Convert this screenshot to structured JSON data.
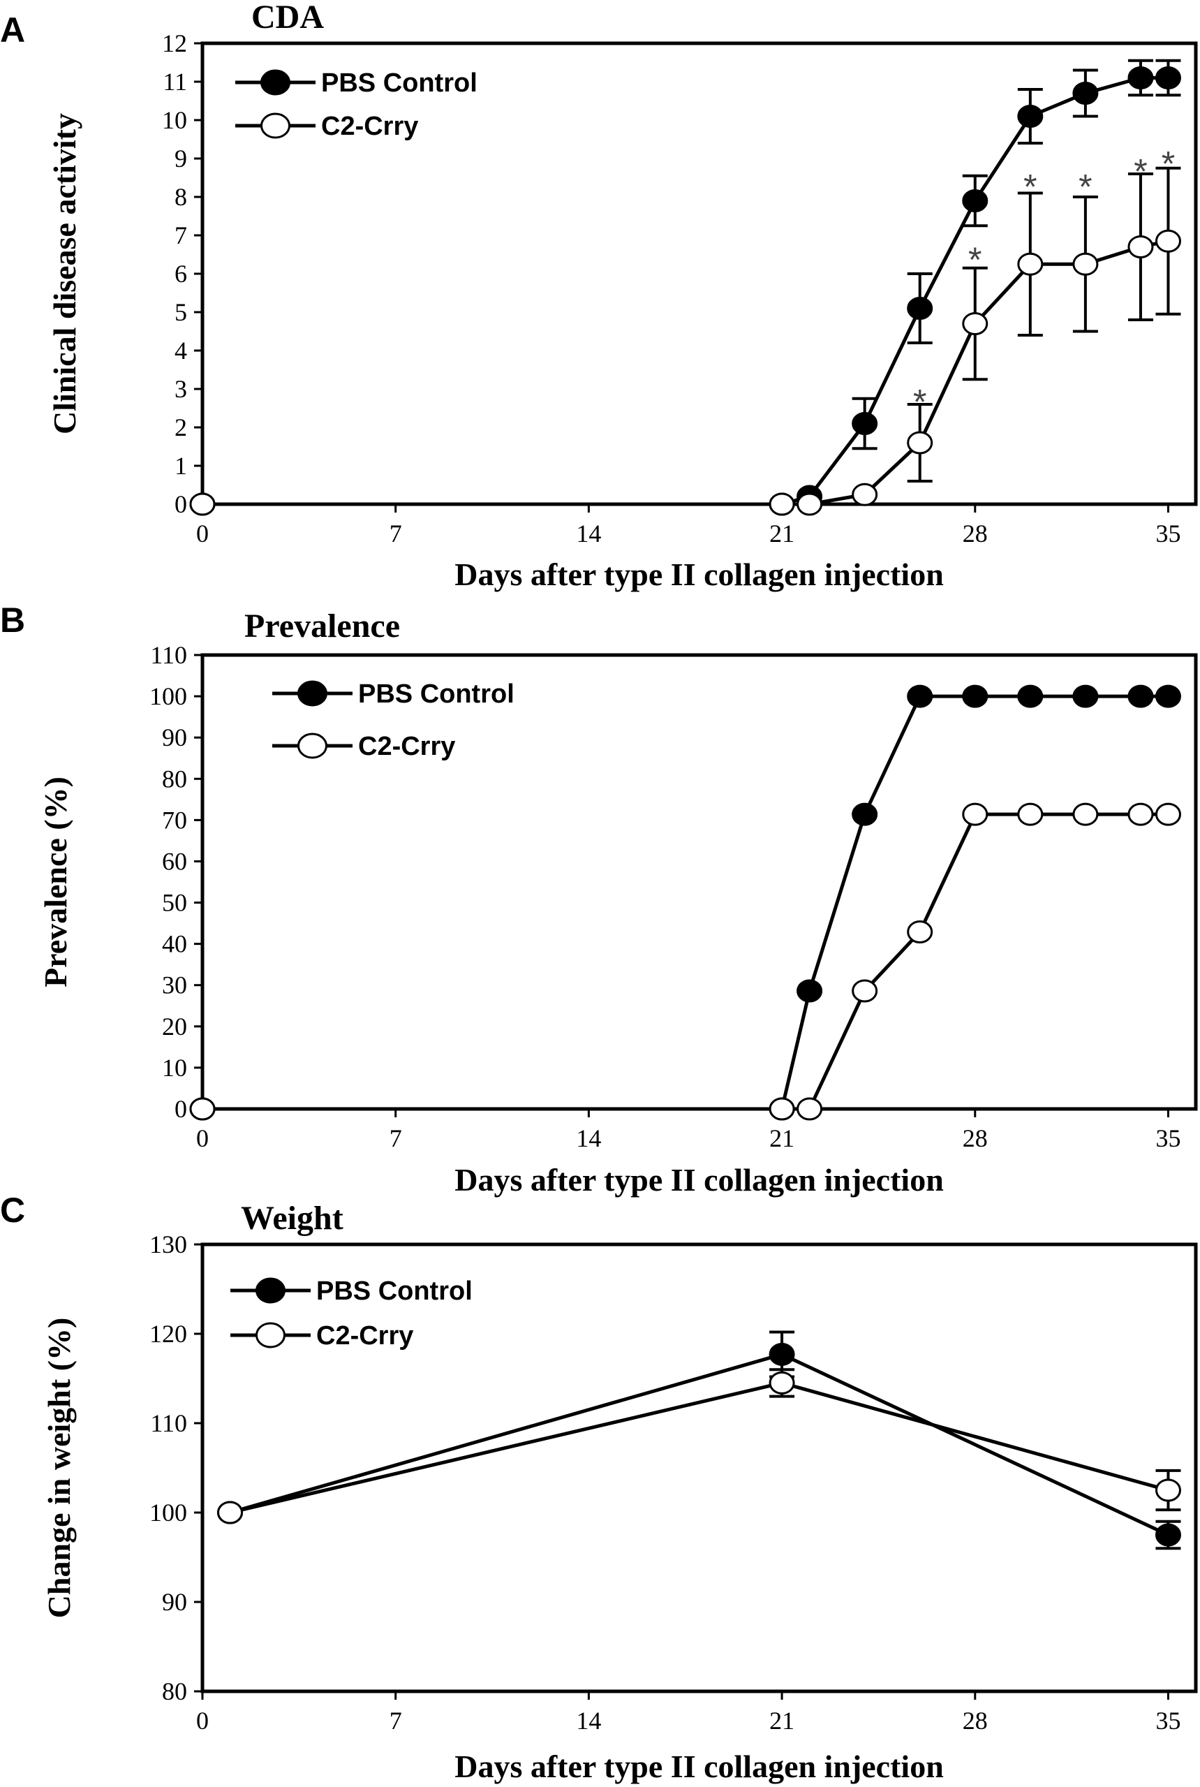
{
  "colors": {
    "pbs_fill": "#000000",
    "crry_fill": "#ffffff",
    "line": "#000000"
  },
  "chart_data": [
    {
      "panel": "A",
      "type": "line",
      "title": "CDA",
      "xlabel": "Days after type II collagen injection",
      "ylabel": "Clinical  disease activity",
      "xlim": [
        0,
        36
      ],
      "ylim": [
        0,
        12
      ],
      "xticks": [
        0,
        7,
        14,
        21,
        28,
        35
      ],
      "xtick_labels": [
        "0",
        "7",
        "14",
        "21",
        "28",
        "35"
      ],
      "yticks": [
        0,
        1,
        2,
        3,
        4,
        5,
        6,
        7,
        8,
        9,
        10,
        11,
        12
      ],
      "ytick_labels": [
        "0",
        "1",
        "2",
        "3",
        "4",
        "5",
        "6",
        "7",
        "8",
        "9",
        "10",
        "11",
        "12"
      ],
      "legend": [
        "PBS Control",
        "C2-Crry"
      ],
      "series": [
        {
          "name": "PBS Control",
          "marker": "filled",
          "x": [
            0,
            21,
            22,
            24,
            26,
            28,
            30,
            32,
            34,
            35
          ],
          "y": [
            0,
            0,
            0.2,
            2.1,
            5.1,
            7.9,
            10.1,
            10.7,
            11.1,
            11.1
          ],
          "err": [
            0,
            0,
            0,
            0.65,
            0.9,
            0.65,
            0.7,
            0.6,
            0.45,
            0.45
          ]
        },
        {
          "name": "C2-Crry",
          "marker": "open",
          "x": [
            0,
            21,
            22,
            24,
            26,
            28,
            30,
            32,
            34,
            35
          ],
          "y": [
            0,
            0,
            0,
            0.25,
            1.6,
            4.7,
            6.25,
            6.25,
            6.7,
            6.85
          ],
          "err": [
            0,
            0,
            0,
            0,
            1.0,
            1.45,
            1.85,
            1.75,
            1.9,
            1.9
          ]
        }
      ],
      "annotations": [
        {
          "text": "*",
          "x": 26,
          "y": 2.9
        },
        {
          "text": "*",
          "x": 28,
          "y": 6.6
        },
        {
          "text": "*",
          "x": 30,
          "y": 8.5
        },
        {
          "text": "*",
          "x": 32,
          "y": 8.5
        },
        {
          "text": "*",
          "x": 34,
          "y": 8.9
        },
        {
          "text": "*",
          "x": 35,
          "y": 9.1
        }
      ]
    },
    {
      "panel": "B",
      "type": "line",
      "title": "Prevalence",
      "xlabel": "Days after type II collagen injection",
      "ylabel": "Prevalence (%)",
      "xlim": [
        0,
        36
      ],
      "ylim": [
        0,
        110
      ],
      "xticks": [
        0,
        7,
        14,
        21,
        28,
        35
      ],
      "xtick_labels": [
        "0",
        "7",
        "14",
        "21",
        "28",
        "35"
      ],
      "yticks": [
        0,
        10,
        20,
        30,
        40,
        50,
        60,
        70,
        80,
        90,
        100,
        110
      ],
      "ytick_labels": [
        "0",
        "10",
        "20",
        "30",
        "40",
        "50",
        "60",
        "70",
        "80",
        "90",
        "100",
        "110"
      ],
      "legend": [
        "PBS Control",
        "C2-Crry"
      ],
      "series": [
        {
          "name": "PBS Control",
          "marker": "filled",
          "x": [
            0,
            21,
            22,
            24,
            26,
            28,
            30,
            32,
            34,
            35
          ],
          "y": [
            0,
            0,
            28.6,
            71.4,
            100,
            100,
            100,
            100,
            100,
            100
          ]
        },
        {
          "name": "C2-Crry",
          "marker": "open",
          "x": [
            0,
            21,
            22,
            24,
            26,
            28,
            30,
            32,
            34,
            35
          ],
          "y": [
            0,
            0,
            0,
            28.6,
            42.9,
            71.4,
            71.4,
            71.4,
            71.4,
            71.4
          ]
        }
      ],
      "annotations": []
    },
    {
      "panel": "C",
      "type": "line",
      "title": "Weight",
      "xlabel": "Days after type II collagen injection",
      "ylabel": "Change  in  weight  (%)",
      "xlim": [
        0,
        36
      ],
      "ylim": [
        80,
        130
      ],
      "xticks": [
        0,
        7,
        14,
        21,
        28,
        35
      ],
      "xtick_labels": [
        "0",
        "7",
        "14",
        "21",
        "28",
        "35"
      ],
      "yticks": [
        80,
        90,
        100,
        110,
        120,
        130
      ],
      "ytick_labels": [
        "80",
        "90",
        "100",
        "110",
        "120",
        "130"
      ],
      "legend": [
        "PBS Control",
        "C2-Crry"
      ],
      "series": [
        {
          "name": "PBS Control",
          "marker": "filled",
          "x": [
            1,
            21,
            35
          ],
          "y": [
            100,
            117.7,
            97.5
          ],
          "err": [
            0,
            2.5,
            1.5
          ]
        },
        {
          "name": "C2-Crry",
          "marker": "open",
          "x": [
            1,
            21,
            35
          ],
          "y": [
            100,
            114.5,
            102.5
          ],
          "err": [
            0,
            1.5,
            2.2
          ]
        }
      ],
      "annotations": []
    }
  ]
}
